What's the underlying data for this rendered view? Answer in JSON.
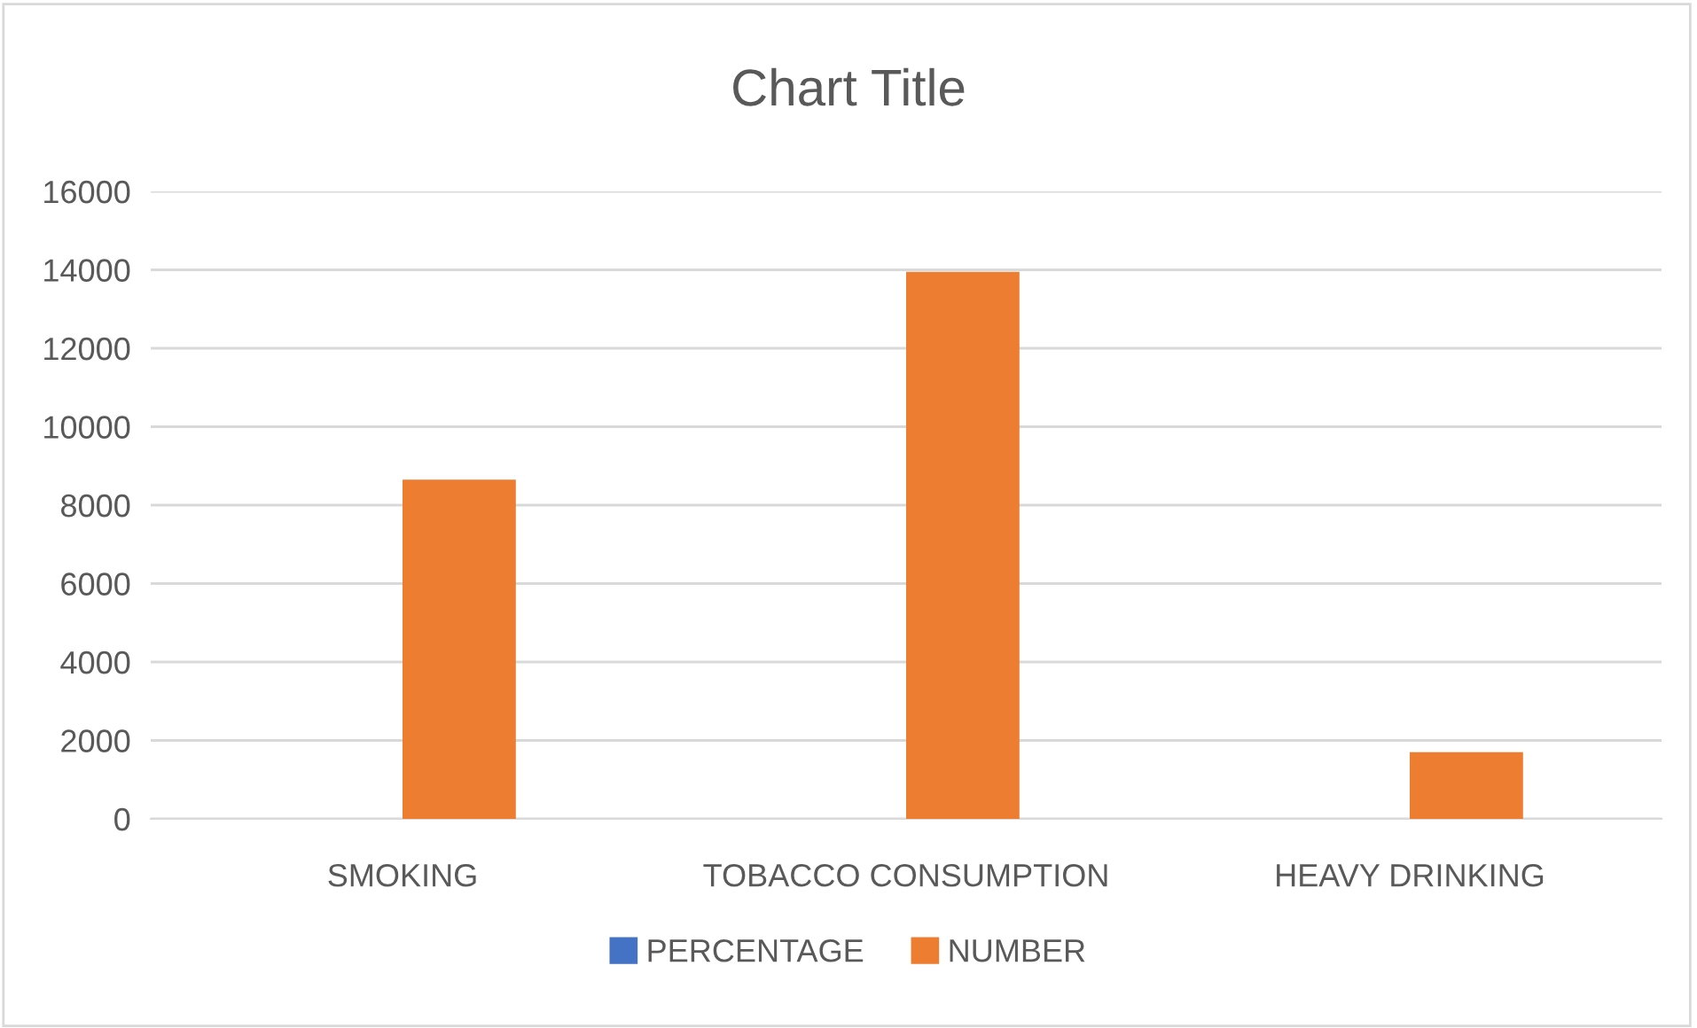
{
  "chart_data": {
    "type": "bar",
    "title": "Chart Title",
    "categories": [
      "SMOKING",
      "TOBACCO CONSUMPTION",
      "HEAVY DRINKING"
    ],
    "series": [
      {
        "name": "PERCENTAGE",
        "color": "#4472c4",
        "values": [
          0,
          0,
          0
        ]
      },
      {
        "name": "NUMBER",
        "color": "#ed7d31",
        "values": [
          8650,
          13950,
          1700
        ]
      }
    ],
    "ylim": [
      0,
      16000
    ],
    "yticks": [
      0,
      2000,
      4000,
      6000,
      8000,
      10000,
      12000,
      14000,
      16000
    ],
    "grid": "y",
    "legend": "bottom"
  }
}
